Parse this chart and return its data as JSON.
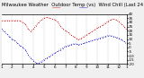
{
  "title": "Milwaukee Weather  Outdoor Temp (vs)  Wind Chill (Last 24 Hours)",
  "bg_color": "#f0f0f0",
  "plot_bg": "#ffffff",
  "grid_color": "#999999",
  "temp_color": "#cc0000",
  "chill_color": "#0000cc",
  "temp_data": [
    32,
    32,
    32,
    32,
    32,
    32,
    32,
    32,
    30,
    28,
    22,
    19,
    22,
    26,
    30,
    33,
    35,
    36,
    35,
    34,
    33,
    31,
    26,
    22,
    20,
    18,
    15,
    13,
    11,
    9,
    11,
    13,
    15,
    17,
    19,
    21,
    23,
    25,
    27,
    29,
    31,
    33,
    34,
    33,
    31,
    28,
    25,
    21
  ],
  "chill_data": [
    22,
    19,
    16,
    13,
    10,
    8,
    5,
    2,
    0,
    -3,
    -9,
    -13,
    -16,
    -19,
    -19,
    -17,
    -15,
    -13,
    -11,
    -9,
    -7,
    -5,
    -3,
    -1,
    1,
    2,
    3,
    4,
    4,
    3,
    4,
    5,
    6,
    7,
    8,
    9,
    10,
    11,
    12,
    13,
    14,
    14,
    13,
    12,
    11,
    9,
    7,
    4
  ],
  "ylim": [
    -20,
    40
  ],
  "ytick_vals": [
    40,
    35,
    30,
    25,
    20,
    15,
    10,
    5,
    0,
    -5,
    -10,
    -15,
    -20
  ],
  "ytick_labels": [
    "4",
    "3",
    "2",
    "1",
    "",
    "",
    "1",
    "",
    "",
    "",
    "",
    "",
    ""
  ],
  "n_points": 48,
  "vline_positions": [
    4,
    8,
    12,
    16,
    20,
    24,
    28,
    32,
    36,
    40,
    44
  ],
  "xtick_positions": [
    0,
    4,
    8,
    12,
    16,
    20,
    24,
    28,
    32,
    36,
    40,
    44,
    47
  ],
  "xtick_labels": [
    "1",
    "2",
    "3",
    "4",
    "5",
    "6",
    "7",
    "8",
    "9",
    "10",
    "11",
    "12",
    "1"
  ],
  "title_fontsize": 3.8,
  "tick_fontsize": 3.0,
  "linewidth": 0.6,
  "markersize": 1.0
}
